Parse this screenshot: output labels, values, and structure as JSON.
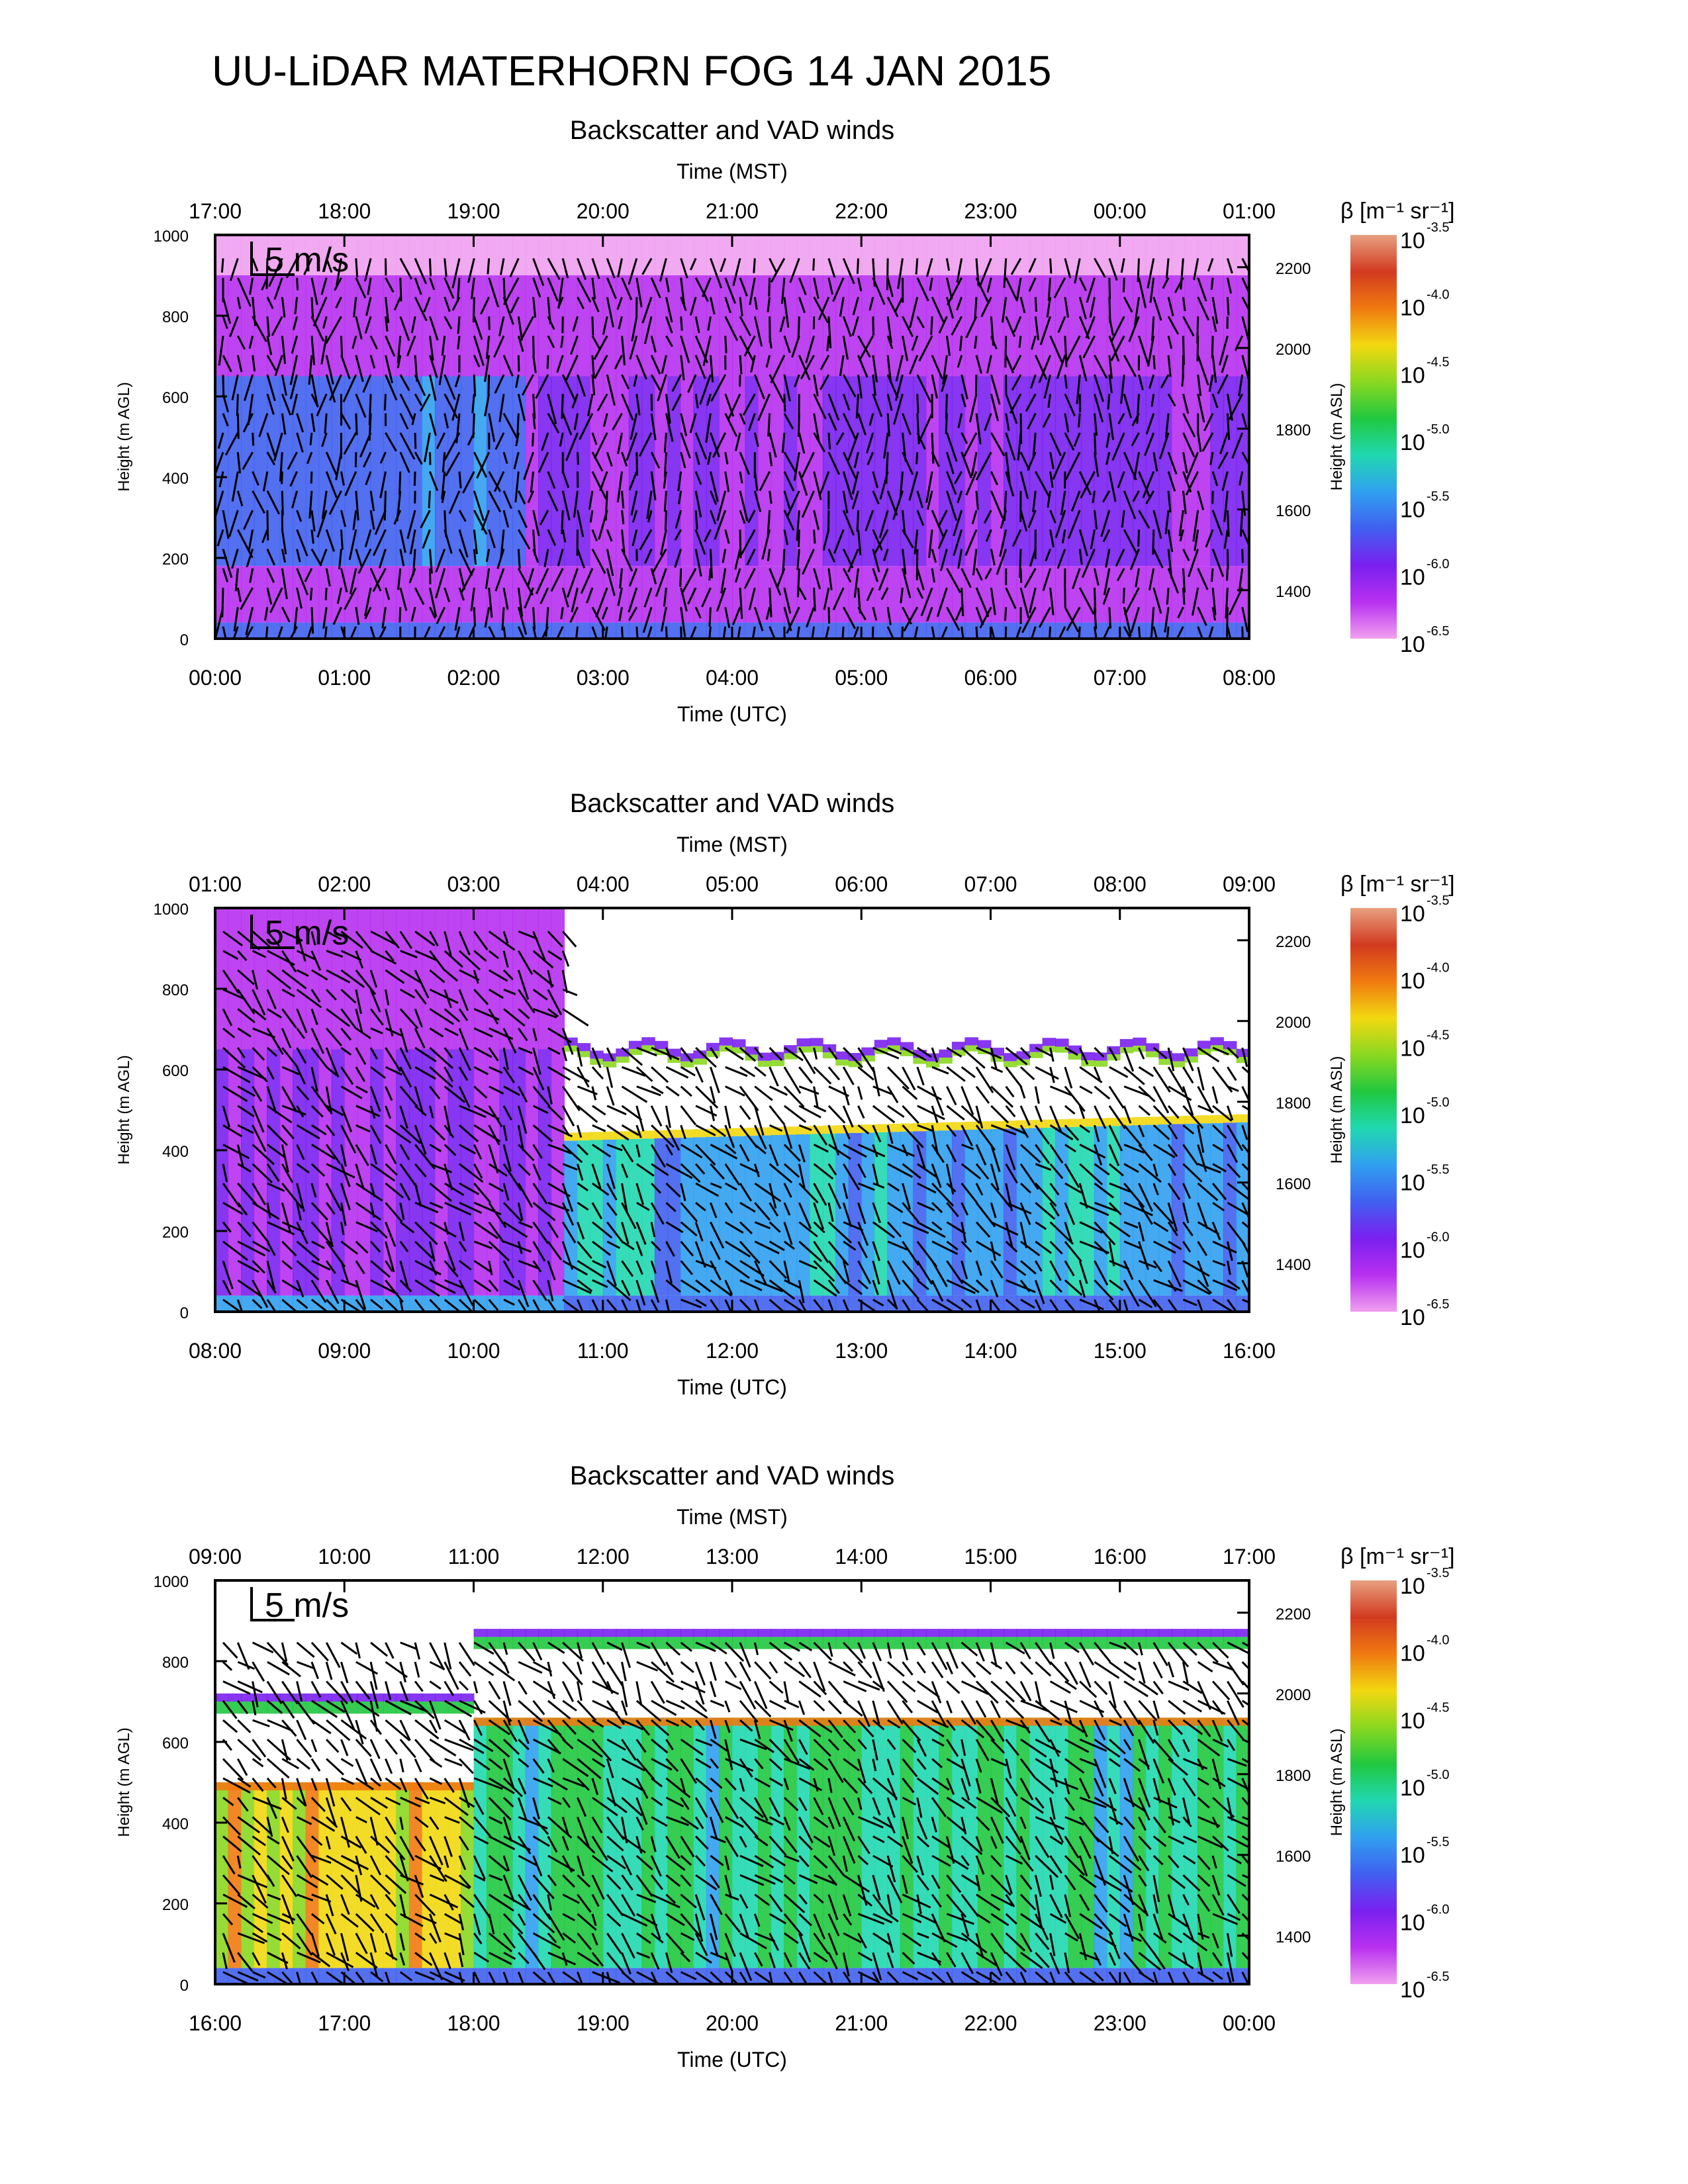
{
  "title": "UU-LiDAR MATERHORN FOG  14 JAN 2015",
  "colorbar_label": "β [m⁻¹ sr⁻¹]",
  "colorbar": {
    "ticks": [
      {
        "base": "10",
        "exp": "-3.5"
      },
      {
        "base": "10",
        "exp": "-4.0"
      },
      {
        "base": "10",
        "exp": "-4.5"
      },
      {
        "base": "10",
        "exp": "-5.0"
      },
      {
        "base": "10",
        "exp": "-5.5"
      },
      {
        "base": "10",
        "exp": "-6.0"
      },
      {
        "base": "10",
        "exp": "-6.5"
      }
    ],
    "colors_top_to_bottom": [
      "#e8a080",
      "#d23a1f",
      "#f07a10",
      "#f2d810",
      "#8ad820",
      "#20c840",
      "#20d8b0",
      "#30a0f0",
      "#4060f0",
      "#7a20f0",
      "#b830f0",
      "#f0a0f0"
    ]
  },
  "vector_key_label": "5 m/s",
  "chart_data": [
    {
      "type": "heatmap",
      "title": "Backscatter and VAD winds",
      "top_xlabel": "Time (MST)",
      "top_ticks": [
        "17:00",
        "18:00",
        "19:00",
        "20:00",
        "21:00",
        "22:00",
        "23:00",
        "00:00",
        "01:00"
      ],
      "xlabel": "Time (UTC)",
      "xticks": [
        "00:00",
        "01:00",
        "02:00",
        "03:00",
        "04:00",
        "05:00",
        "06:00",
        "07:00",
        "08:00"
      ],
      "ylabel": "Height (m AGL)",
      "ylim": [
        0,
        1000
      ],
      "yticks": [
        "0",
        "200",
        "400",
        "600",
        "800",
        "1000"
      ],
      "y2label": "Height (m ASL)",
      "y2ticks": [
        "1400",
        "1600",
        "1800",
        "2000",
        "2200"
      ],
      "cloud_base": null,
      "cloud_top": null,
      "description_values": {
        "dominant_log_beta_low": -5.8,
        "dominant_log_beta_high": -6.3
      }
    },
    {
      "type": "heatmap",
      "title": "Backscatter and VAD winds",
      "top_xlabel": "Time (MST)",
      "top_ticks": [
        "01:00",
        "02:00",
        "03:00",
        "04:00",
        "05:00",
        "06:00",
        "07:00",
        "08:00",
        "09:00"
      ],
      "xlabel": "Time (UTC)",
      "xticks": [
        "08:00",
        "09:00",
        "10:00",
        "11:00",
        "12:00",
        "13:00",
        "14:00",
        "15:00",
        "16:00"
      ],
      "ylabel": "Height (m AGL)",
      "ylim": [
        0,
        1000
      ],
      "yticks": [
        "0",
        "200",
        "400",
        "600",
        "800",
        "1000"
      ],
      "y2label": "Height (m ASL)",
      "y2ticks": [
        "1400",
        "1600",
        "1800",
        "2000",
        "2200"
      ],
      "cloud_base": 450,
      "cloud_top": 660
    },
    {
      "type": "heatmap",
      "title": "Backscatter and VAD winds",
      "top_xlabel": "Time (MST)",
      "top_ticks": [
        "09:00",
        "10:00",
        "11:00",
        "12:00",
        "13:00",
        "14:00",
        "15:00",
        "16:00",
        "17:00"
      ],
      "xlabel": "Time (UTC)",
      "xticks": [
        "16:00",
        "17:00",
        "18:00",
        "19:00",
        "20:00",
        "21:00",
        "22:00",
        "23:00",
        "00:00"
      ],
      "ylabel": "Height (m AGL)",
      "ylim": [
        0,
        1000
      ],
      "yticks": [
        "0",
        "200",
        "400",
        "600",
        "800",
        "1000"
      ],
      "y2label": "Height (m ASL)",
      "y2ticks": [
        "1400",
        "1600",
        "1800",
        "2000",
        "2200"
      ],
      "cloud_base": 670,
      "cloud_top": 860
    }
  ]
}
